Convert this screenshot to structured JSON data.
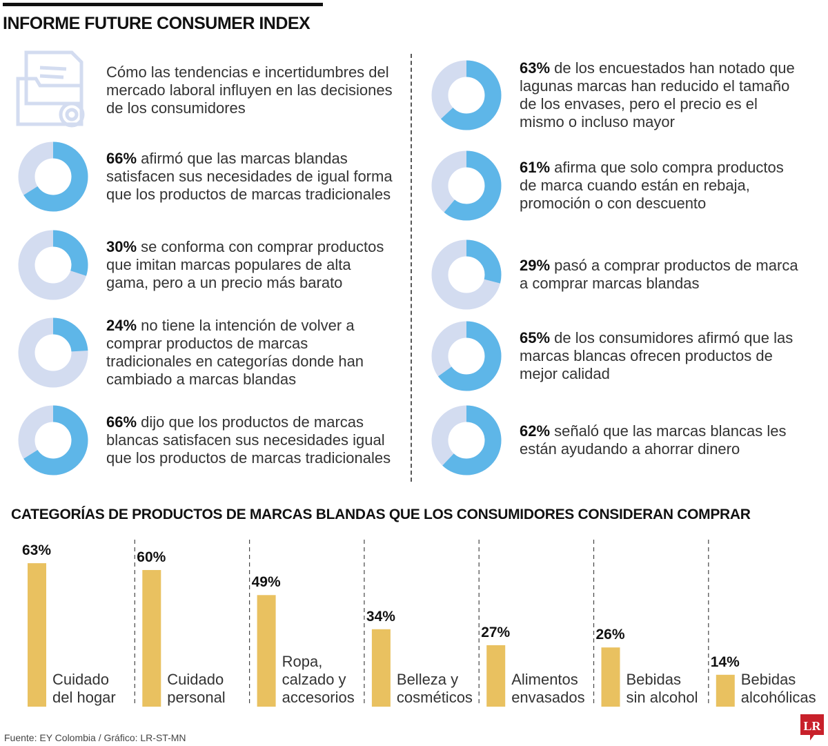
{
  "title": "INFORME FUTURE CONSUMER INDEX",
  "intro": "Cómo las tendencias e incertidumbres del mercado laboral influyen en las decisiones de los consumidores",
  "colors": {
    "donut_fill": "#5eb6e8",
    "donut_bg": "#d3dcf0",
    "bar": "#e9c160",
    "logo": "#c8202a"
  },
  "stats_left": [
    {
      "pct": 66,
      "bold": "66%",
      "text": " afirmó que las marcas blandas satisfacen sus necesidades de igual forma que los productos de marcas tradicionales"
    },
    {
      "pct": 30,
      "bold": "30%",
      "text": " se conforma con comprar productos que imitan marcas populares de alta gama, pero a un precio más barato"
    },
    {
      "pct": 24,
      "bold": "24%",
      "text": " no tiene la intención de volver a comprar productos de marcas tradicionales en categorías donde han cambiado a marcas blandas"
    },
    {
      "pct": 66,
      "bold": "66%",
      "text": " dijo que los productos de marcas blancas satisfacen sus necesidades igual que los productos de marcas tradicionales"
    }
  ],
  "stats_right": [
    {
      "pct": 63,
      "bold": "63%",
      "text": " de los encuestados han notado que lagunas marcas han reducido el tamaño de los envases, pero el precio es el mismo o incluso mayor"
    },
    {
      "pct": 61,
      "bold": "61%",
      "text": " afirma que solo compra productos de marca cuando están en rebaja, promoción o con descuento"
    },
    {
      "pct": 29,
      "bold": "29%",
      "text": " pasó a comprar productos de marca a comprar marcas blandas"
    },
    {
      "pct": 65,
      "bold": "65%",
      "text": " de los consumidores afirmó que las marcas blancas ofrecen productos de mejor calidad"
    },
    {
      "pct": 62,
      "bold": "62%",
      "text": " señaló que las marcas blancas les están ayudando a ahorrar dinero"
    }
  ],
  "chart_data": {
    "type": "bar",
    "title": "CATEGORÍAS DE PRODUCTOS DE MARCAS BLANDAS QUE LOS CONSUMIDORES CONSIDERAN COMPRAR",
    "categories": [
      [
        "Cuidado",
        "del hogar"
      ],
      [
        "Cuidado",
        "personal"
      ],
      [
        "Ropa,",
        "calzado y",
        "accesorios"
      ],
      [
        "Belleza y",
        "cosméticos"
      ],
      [
        "Alimentos",
        "envasados"
      ],
      [
        "Bebidas",
        "sin alcohol"
      ],
      [
        "Bebidas",
        "alcohólicas"
      ]
    ],
    "values": [
      63,
      60,
      49,
      34,
      27,
      26,
      14
    ],
    "value_labels": [
      "63%",
      "60%",
      "49%",
      "34%",
      "27%",
      "26%",
      "14%"
    ],
    "ylim": [
      0,
      100
    ],
    "grid": false
  },
  "source": "Fuente: EY Colombia / Gráfico: LR-ST-MN",
  "logo": "LR"
}
